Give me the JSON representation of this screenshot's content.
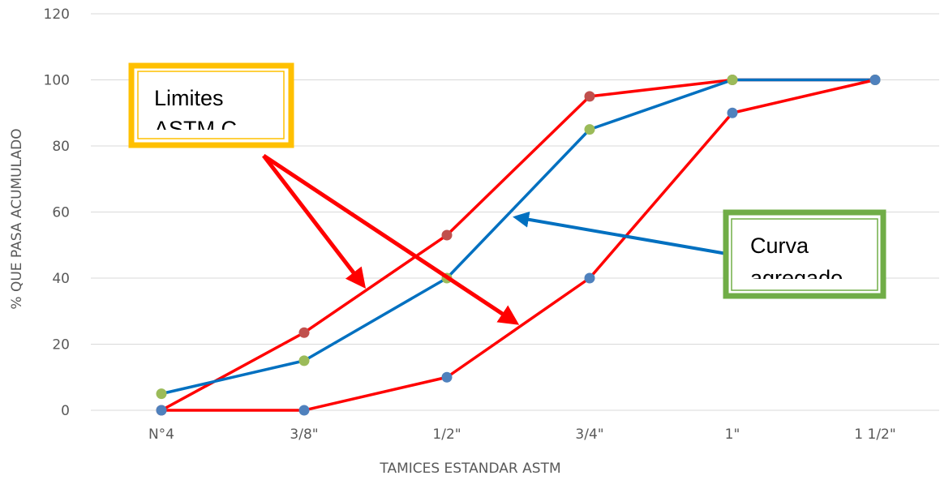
{
  "chart_data": {
    "type": "line",
    "categories": [
      "N°4",
      "3/8\"",
      "1/2\"",
      "3/4\"",
      "1\"",
      "1 1/2\""
    ],
    "series": [
      {
        "values": [
          0,
          23.5,
          53,
          95,
          100,
          100
        ],
        "color": "#ff0000",
        "marker_color": "#c0504d"
      },
      {
        "values": [
          5,
          15,
          40,
          85,
          100,
          100
        ],
        "color": "#0070c0",
        "marker_color": "#9bbb59"
      },
      {
        "values": [
          0,
          0,
          10,
          40,
          90,
          100
        ],
        "color": "#ff0000",
        "marker_color": "#4f81bd"
      }
    ],
    "xlabel": "TAMICES ESTANDAR ASTM",
    "ylabel": "% QUE PASA ACUMULADO",
    "ylim": [
      0,
      120
    ],
    "yticks": [
      0,
      20,
      40,
      60,
      80,
      100,
      120
    ],
    "grid": true,
    "annotations": [
      {
        "lines": [
          "Limites",
          "ASTM C"
        ],
        "frame_color": "#ffc000",
        "arrow_color": "#ff0000"
      },
      {
        "lines": [
          "Curva",
          "agregado"
        ],
        "frame_color": "#70ad47",
        "arrow_color": "#0070c0"
      }
    ]
  }
}
